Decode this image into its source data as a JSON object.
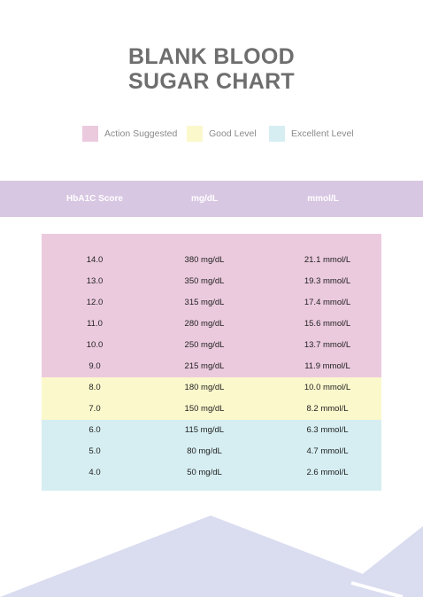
{
  "title": {
    "line1": "BLANK BLOOD",
    "line2": "SUGAR CHART"
  },
  "legend": [
    {
      "label": "Action Suggested",
      "color": "#ebcade"
    },
    {
      "label": "Good Level",
      "color": "#fbf8cc"
    },
    {
      "label": "Excellent Level",
      "color": "#d6eef2"
    }
  ],
  "header": {
    "col1": "HbA1C Score",
    "col2": "mg/dL",
    "col3": "mmol/L",
    "color": "#d8c7e2"
  },
  "rows": [
    {
      "score": "14.0",
      "mgdl": "380 mg/dL",
      "mmol": "21.1 mmol/L",
      "level": "Action Suggested"
    },
    {
      "score": "13.0",
      "mgdl": "350 mg/dL",
      "mmol": "19.3 mmol/L",
      "level": "Action Suggested"
    },
    {
      "score": "12.0",
      "mgdl": "315 mg/dL",
      "mmol": "17.4 mmol/L",
      "level": "Action Suggested"
    },
    {
      "score": "11.0",
      "mgdl": "280 mg/dL",
      "mmol": "15.6 mmol/L",
      "level": "Action Suggested"
    },
    {
      "score": "10.0",
      "mgdl": "250 mg/dL",
      "mmol": "13.7 mmol/L",
      "level": "Action Suggested"
    },
    {
      "score": "9.0",
      "mgdl": "215 mg/dL",
      "mmol": "11.9 mmol/L",
      "level": "Action Suggested"
    },
    {
      "score": "8.0",
      "mgdl": "180 mg/dL",
      "mmol": "10.0 mmol/L",
      "level": "Good Level"
    },
    {
      "score": "7.0",
      "mgdl": "150 mg/dL",
      "mmol": "8.2 mmol/L",
      "level": "Good Level"
    },
    {
      "score": "6.0",
      "mgdl": "115 mg/dL",
      "mmol": "6.3 mmol/L",
      "level": "Excellent Level"
    },
    {
      "score": "5.0",
      "mgdl": "80 mg/dL",
      "mmol": "4.7 mmol/L",
      "level": "Excellent Level"
    },
    {
      "score": "4.0",
      "mgdl": "50 mg/dL",
      "mmol": "2.6 mmol/L",
      "level": "Excellent Level"
    }
  ],
  "decoration_color": "#dadcf0"
}
